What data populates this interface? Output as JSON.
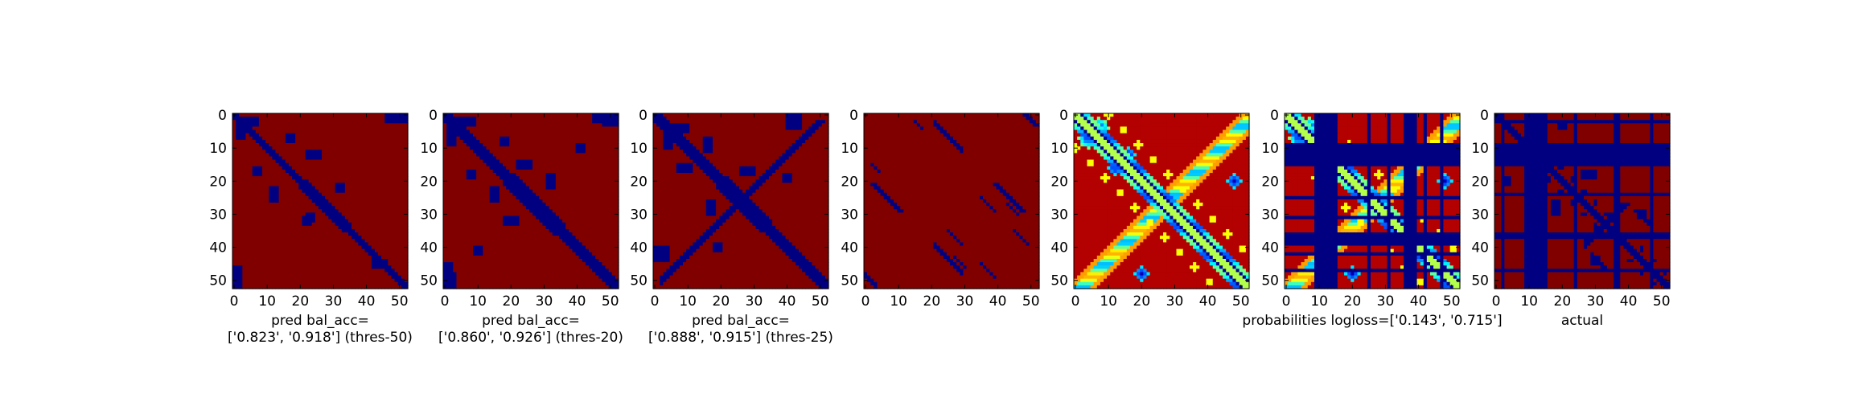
{
  "chart_data": [
    {
      "type": "heatmap",
      "map": "contact-map",
      "variant": "pred_thres50",
      "matrix_size": 53,
      "colormap": "jet",
      "xticks": [
        0,
        10,
        20,
        30,
        40,
        50
      ],
      "yticks": [
        0,
        10,
        20,
        30,
        40,
        50
      ],
      "xlabel_lines": [
        "pred bal_acc=",
        "['0.823', '0.918'] (thres-50)"
      ]
    },
    {
      "type": "heatmap",
      "map": "contact-map",
      "variant": "pred_thres20",
      "matrix_size": 53,
      "colormap": "jet",
      "xticks": [
        0,
        10,
        20,
        30,
        40,
        50
      ],
      "yticks": [
        0,
        10,
        20,
        30,
        40,
        50
      ],
      "xlabel_lines": [
        "pred bal_acc=",
        "['0.860', '0.926'] (thres-20)"
      ]
    },
    {
      "type": "heatmap",
      "map": "contact-map",
      "variant": "pred_thres25",
      "matrix_size": 53,
      "colormap": "jet",
      "xticks": [
        0,
        10,
        20,
        30,
        40,
        50
      ],
      "yticks": [
        0,
        10,
        20,
        30,
        40,
        50
      ],
      "xlabel_lines": [
        "pred bal_acc=",
        "['0.888', '0.915'] (thres-25)"
      ]
    },
    {
      "type": "heatmap",
      "map": "contact-map",
      "variant": "sparse",
      "matrix_size": 53,
      "colormap": "jet",
      "xticks": [
        0,
        10,
        20,
        30,
        40,
        50
      ],
      "yticks": [
        0,
        10,
        20,
        30,
        40,
        50
      ],
      "xlabel_lines": []
    },
    {
      "type": "heatmap",
      "map": "contact-map",
      "variant": "probabilities",
      "matrix_size": 53,
      "colormap": "jet",
      "xticks": [
        0,
        10,
        20,
        30,
        40,
        50
      ],
      "yticks": [
        0,
        10,
        20,
        30,
        40,
        50
      ],
      "xlabel_lines": []
    },
    {
      "type": "heatmap",
      "map": "contact-map",
      "variant": "probabilities_masked",
      "matrix_size": 53,
      "colormap": "jet",
      "xticks": [
        0,
        10,
        20,
        30,
        40,
        50
      ],
      "yticks": [
        0,
        10,
        20,
        30,
        40,
        50
      ],
      "xlabel_lines": [
        "probabilities logloss=['0.143', '0.715']"
      ]
    },
    {
      "type": "heatmap",
      "map": "contact-map",
      "variant": "actual",
      "matrix_size": 53,
      "colormap": "jet",
      "xticks": [
        0,
        10,
        20,
        30,
        40,
        50
      ],
      "yticks": [
        0,
        10,
        20,
        30,
        40,
        50
      ],
      "xlabel_lines": [
        "actual"
      ]
    }
  ]
}
